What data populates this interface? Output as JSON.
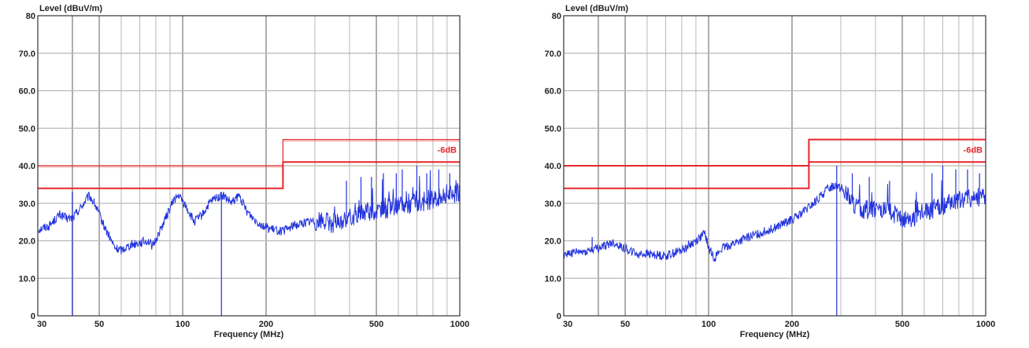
{
  "chart_data": [
    {
      "type": "line",
      "ylabel": "Level (dBuV/m)",
      "xlabel": "Frequency (MHz)",
      "x_scale": "log",
      "xlim": [
        30,
        1000
      ],
      "ylim": [
        0,
        80
      ],
      "x_ticks": [
        30,
        50,
        100,
        200,
        500,
        1000
      ],
      "x_tick_labels": [
        "30",
        "50",
        "100",
        "200",
        "500",
        "1000"
      ],
      "y_ticks": [
        0,
        10,
        20,
        30,
        40,
        50,
        60,
        70,
        80
      ],
      "y_tick_labels": [
        "0",
        "10.0",
        "20.0",
        "30.0",
        "40.0",
        "50.0",
        "60.0",
        "70.0",
        "80"
      ],
      "grid": true,
      "colors": {
        "limit": "#e8262a",
        "trace": "#2233dd",
        "grid": "#b8b8b8",
        "frame": "#333333"
      },
      "limit_label": "-6dB",
      "limit_lines": [
        {
          "points": [
            [
              30,
              40
            ],
            [
              230,
              40
            ],
            [
              230,
              47
            ],
            [
              1000,
              47
            ]
          ],
          "emphasis": "thin"
        },
        {
          "points": [
            [
              30,
              34
            ],
            [
              230,
              34
            ],
            [
              230,
              41
            ],
            [
              1000,
              41
            ]
          ],
          "emphasis": "thick",
          "label": "-6dB"
        }
      ],
      "trace": [
        [
          30,
          23
        ],
        [
          33,
          24
        ],
        [
          36,
          27
        ],
        [
          38,
          26
        ],
        [
          40,
          26
        ],
        [
          43,
          29
        ],
        [
          46,
          32
        ],
        [
          48,
          30
        ],
        [
          52,
          24
        ],
        [
          57,
          18
        ],
        [
          60,
          17.5
        ],
        [
          65,
          19
        ],
        [
          70,
          19.5
        ],
        [
          75,
          20
        ],
        [
          78,
          18.5
        ],
        [
          82,
          22
        ],
        [
          88,
          27
        ],
        [
          93,
          31
        ],
        [
          97,
          32
        ],
        [
          103,
          29
        ],
        [
          110,
          25
        ],
        [
          118,
          27
        ],
        [
          125,
          30
        ],
        [
          132,
          31.5
        ],
        [
          140,
          32
        ],
        [
          150,
          30
        ],
        [
          160,
          32
        ],
        [
          170,
          28
        ],
        [
          180,
          26
        ],
        [
          195,
          24
        ],
        [
          210,
          23
        ],
        [
          230,
          22.5
        ],
        [
          250,
          24
        ],
        [
          280,
          25
        ],
        [
          320,
          25.5
        ],
        [
          350,
          24.5
        ],
        [
          400,
          26
        ],
        [
          450,
          27.5
        ],
        [
          500,
          28
        ],
        [
          550,
          28.5
        ],
        [
          600,
          29
        ],
        [
          700,
          30
        ],
        [
          800,
          31
        ],
        [
          900,
          32
        ],
        [
          1000,
          33
        ]
      ],
      "spikes": [
        {
          "x": 40,
          "y0": 0,
          "y1": 33
        },
        {
          "x": 138,
          "y0": 0,
          "y1": 33
        },
        {
          "x": 390,
          "y0": 25,
          "y1": 36
        },
        {
          "x": 440,
          "y0": 26,
          "y1": 37
        },
        {
          "x": 480,
          "y0": 26,
          "y1": 37
        },
        {
          "x": 530,
          "y0": 27,
          "y1": 38
        },
        {
          "x": 590,
          "y0": 28,
          "y1": 38
        },
        {
          "x": 620,
          "y0": 28,
          "y1": 39
        },
        {
          "x": 700,
          "y0": 29,
          "y1": 40
        },
        {
          "x": 760,
          "y0": 30,
          "y1": 38
        },
        {
          "x": 840,
          "y0": 30,
          "y1": 39
        },
        {
          "x": 920,
          "y0": 31,
          "y1": 38
        }
      ]
    },
    {
      "type": "line",
      "ylabel": "Level (dBuV/m)",
      "xlabel": "Frequency (MHz)",
      "x_scale": "log",
      "xlim": [
        30,
        1000
      ],
      "ylim": [
        0,
        80
      ],
      "x_ticks": [
        30,
        50,
        100,
        200,
        500,
        1000
      ],
      "x_tick_labels": [
        "30",
        "50",
        "100",
        "200",
        "500",
        "1000"
      ],
      "y_ticks": [
        0,
        10,
        20,
        30,
        40,
        50,
        60,
        70,
        80
      ],
      "y_tick_labels": [
        "0",
        "10.0",
        "20.0",
        "30.0",
        "40.0",
        "50.0",
        "60.0",
        "70.0",
        "80"
      ],
      "grid": true,
      "colors": {
        "limit": "#e8262a",
        "trace": "#2233dd",
        "grid": "#b8b8b8",
        "frame": "#333333"
      },
      "limit_label": "-6dB",
      "limit_lines": [
        {
          "points": [
            [
              30,
              40
            ],
            [
              230,
              40
            ],
            [
              230,
              47
            ],
            [
              1000,
              47
            ]
          ],
          "emphasis": "thick"
        },
        {
          "points": [
            [
              30,
              34
            ],
            [
              230,
              34
            ],
            [
              230,
              41
            ],
            [
              1000,
              41
            ]
          ],
          "emphasis": "thick",
          "label": "-6dB"
        }
      ],
      "trace": [
        [
          30,
          16.5
        ],
        [
          35,
          17
        ],
        [
          40,
          18
        ],
        [
          45,
          19.5
        ],
        [
          50,
          18
        ],
        [
          55,
          16.5
        ],
        [
          60,
          16.5
        ],
        [
          70,
          16
        ],
        [
          80,
          17.5
        ],
        [
          90,
          20
        ],
        [
          97,
          22
        ],
        [
          100,
          18
        ],
        [
          105,
          15.5
        ],
        [
          112,
          18
        ],
        [
          125,
          19.5
        ],
        [
          140,
          21
        ],
        [
          160,
          22.5
        ],
        [
          180,
          24
        ],
        [
          210,
          26.5
        ],
        [
          240,
          30
        ],
        [
          270,
          34
        ],
        [
          290,
          35
        ],
        [
          310,
          33
        ],
        [
          340,
          29
        ],
        [
          380,
          28
        ],
        [
          420,
          28.5
        ],
        [
          460,
          27.5
        ],
        [
          500,
          25
        ],
        [
          560,
          26.5
        ],
        [
          620,
          28
        ],
        [
          700,
          29.5
        ],
        [
          800,
          31
        ],
        [
          900,
          31.5
        ],
        [
          1000,
          32
        ]
      ],
      "spikes": [
        {
          "x": 38,
          "y0": 17,
          "y1": 21
        },
        {
          "x": 290,
          "y0": 0,
          "y1": 40
        },
        {
          "x": 330,
          "y0": 30,
          "y1": 38
        },
        {
          "x": 380,
          "y0": 28,
          "y1": 37
        },
        {
          "x": 450,
          "y0": 27,
          "y1": 36
        },
        {
          "x": 640,
          "y0": 28,
          "y1": 38
        },
        {
          "x": 700,
          "y0": 29,
          "y1": 40
        },
        {
          "x": 780,
          "y0": 30,
          "y1": 39
        },
        {
          "x": 860,
          "y0": 30,
          "y1": 39
        },
        {
          "x": 950,
          "y0": 31,
          "y1": 38
        }
      ]
    }
  ]
}
